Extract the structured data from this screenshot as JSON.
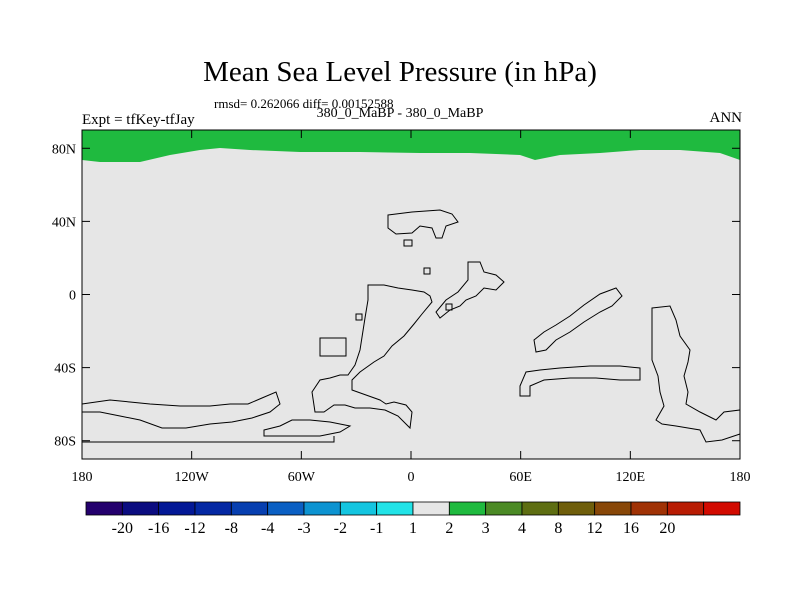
{
  "title": "Mean Sea Level Pressure (in hPa)",
  "stats": "rmsd= 0.262066 diff= 0.00152588",
  "subtitle": "380_0_MaBP - 380_0_MaBP",
  "left_label": "Expt = tfKey-tfJay",
  "right_label": "ANN",
  "colors": {
    "land_fill": "#e6e6e6",
    "positive_band": "#1fba3f",
    "coast_line": "#000000"
  },
  "chart_data": {
    "type": "heatmap",
    "projection": "cylindrical-equidistant",
    "lon_range": [
      -180,
      180
    ],
    "lat_range": [
      -90,
      90
    ],
    "y_ticks": [
      "80N",
      "40N",
      "0",
      "40S",
      "80S"
    ],
    "y_tick_values": [
      80,
      40,
      0,
      -40,
      -80
    ],
    "x_ticks": [
      "180",
      "120W",
      "60W",
      "0",
      "60E",
      "120E",
      "180"
    ],
    "x_tick_values": [
      -180,
      -120,
      -60,
      0,
      60,
      120,
      180
    ],
    "field_description_regions": [
      {
        "region": "north of ~72N",
        "color_level": "1 to 2"
      },
      {
        "region": "elsewhere",
        "color_level": "-1 to 1"
      }
    ],
    "colorbar": {
      "labels": [
        "-20",
        "-16",
        "-12",
        "-8",
        "-4",
        "-3",
        "-2",
        "-1",
        "1",
        "2",
        "3",
        "4",
        "8",
        "12",
        "16",
        "20"
      ],
      "colors": [
        "#24006d",
        "#0b0c80",
        "#031896",
        "#0428a3",
        "#073fb0",
        "#0a5fc3",
        "#0c93d1",
        "#14c5e0",
        "#22e3e7",
        "#e6e6e6",
        "#1fba3f",
        "#4b8a25",
        "#5e6e12",
        "#6f5e0b",
        "#884708",
        "#a03205",
        "#b81c03",
        "#d20a00"
      ]
    }
  }
}
